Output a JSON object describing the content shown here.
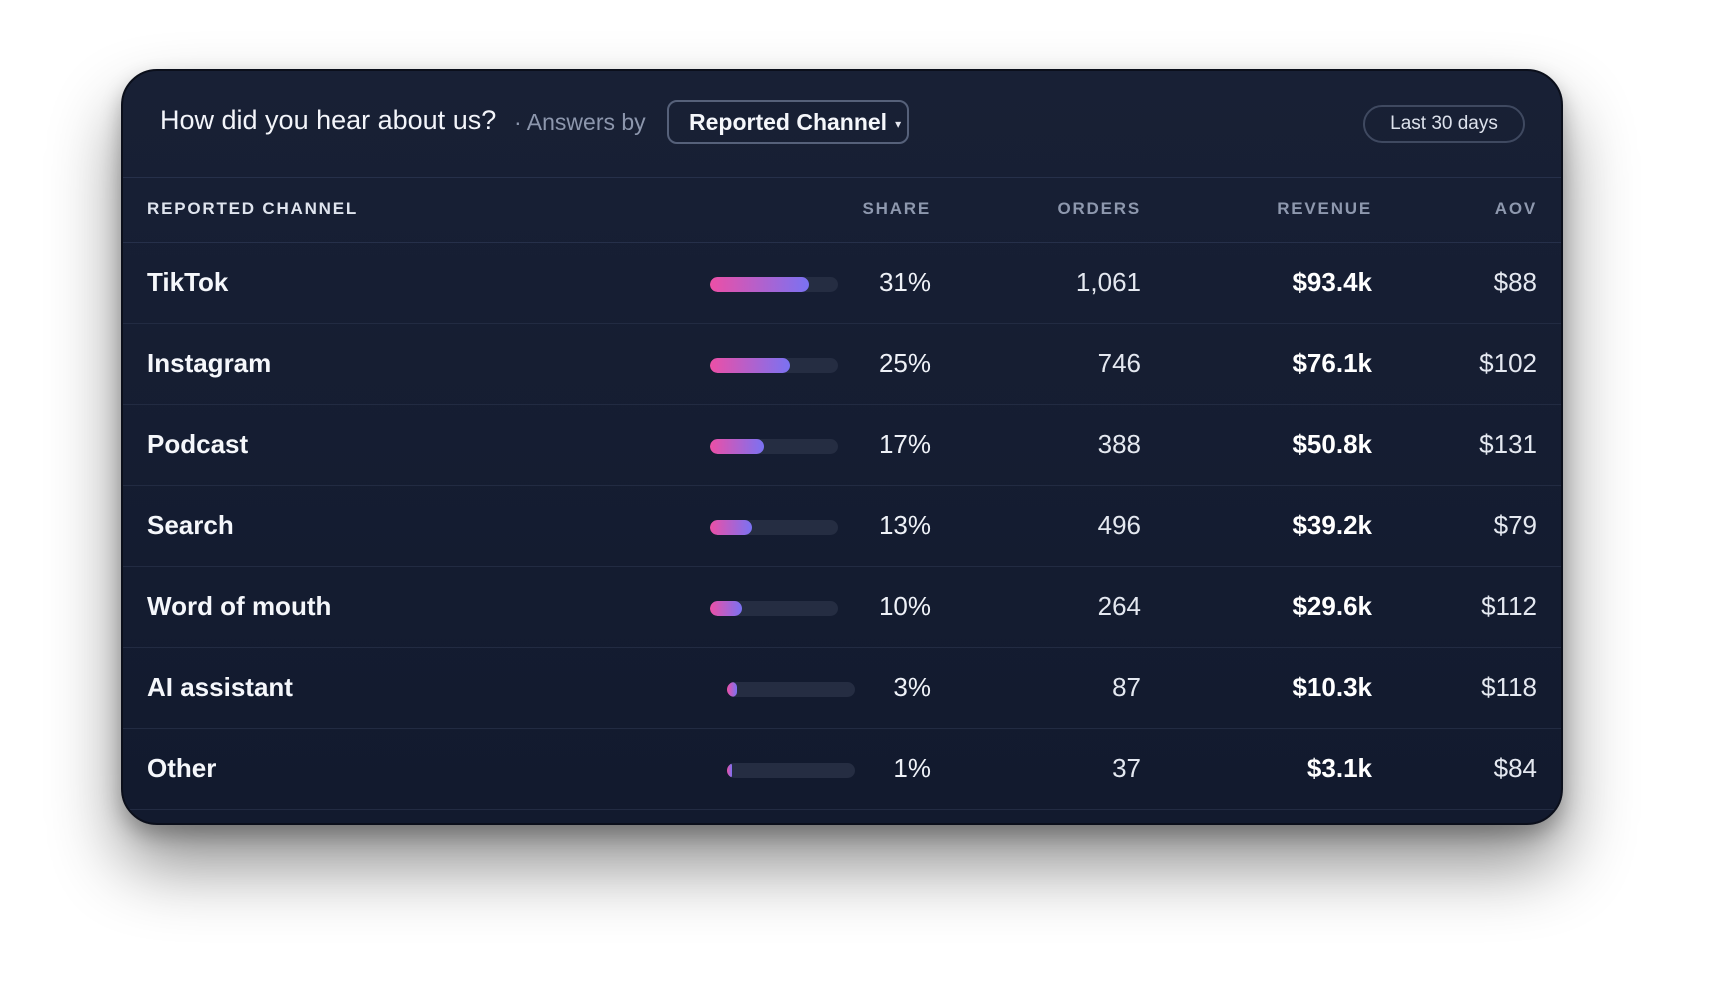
{
  "header": {
    "title": "How did you hear about us?",
    "subtitle": "· Answers by",
    "dropdown_value": "Reported Channel",
    "dropdown_caret": "▾",
    "date_range": "Last 30 days"
  },
  "table": {
    "columns": [
      "REPORTED CHANNEL",
      "SHARE",
      "ORDERS",
      "REVENUE",
      "AOV"
    ],
    "rows": [
      {
        "channel": "TikTok",
        "share": "31%",
        "share_value": 0.31,
        "orders": "1,061",
        "revenue": "$93.4k",
        "aov": "$88"
      },
      {
        "channel": "Instagram",
        "share": "25%",
        "share_value": 0.25,
        "orders": "746",
        "revenue": "$76.1k",
        "aov": "$102"
      },
      {
        "channel": "Podcast",
        "share": "17%",
        "share_value": 0.17,
        "orders": "388",
        "revenue": "$50.8k",
        "aov": "$131"
      },
      {
        "channel": "Search",
        "share": "13%",
        "share_value": 0.13,
        "orders": "496",
        "revenue": "$39.2k",
        "aov": "$79"
      },
      {
        "channel": "Word of mouth",
        "share": "10%",
        "share_value": 0.1,
        "orders": "264",
        "revenue": "$29.6k",
        "aov": "$112"
      },
      {
        "channel": "AI assistant",
        "share": "3%",
        "share_value": 0.03,
        "orders": "87",
        "revenue": "$10.3k",
        "aov": "$118"
      },
      {
        "channel": "Other",
        "share": "1%",
        "share_value": 0.01,
        "orders": "37",
        "revenue": "$3.1k",
        "aov": "$84"
      }
    ]
  },
  "colors": {
    "bar_start": "#ec4fa6",
    "bar_end": "#7a72f2",
    "card_bg": "#161e32"
  }
}
